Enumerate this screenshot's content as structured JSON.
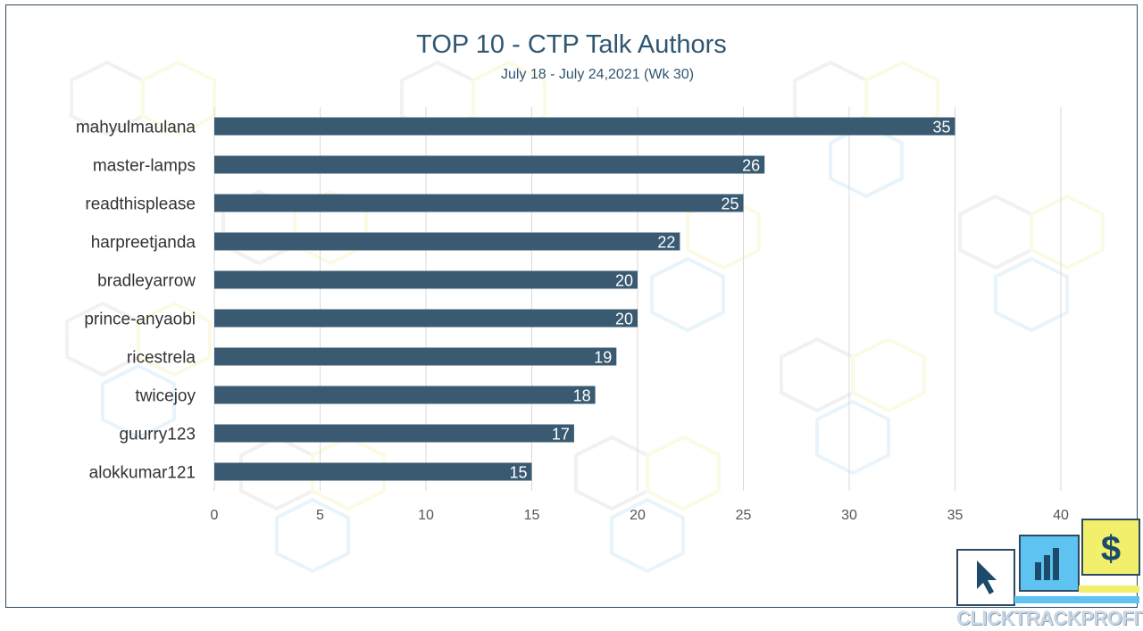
{
  "chart_data": {
    "type": "bar",
    "orientation": "horizontal",
    "title": "TOP 10 - CTP Talk Authors",
    "subtitle": "July 18 - July 24,2021 (Wk 30)",
    "categories": [
      "mahyulmaulana",
      "master-lamps",
      "readthisplease",
      "harpreetjanda",
      "bradleyarrow",
      "prince-anyaobi",
      "ricestrela",
      "twicejoy",
      "guurry123",
      "alokkumar121"
    ],
    "values": [
      35,
      26,
      25,
      22,
      20,
      20,
      19,
      18,
      17,
      15
    ],
    "xlim": [
      0,
      40
    ],
    "xticks": [
      "0",
      "5",
      "10",
      "15",
      "20",
      "25",
      "30",
      "35",
      "40"
    ],
    "grid": true,
    "data_labels": true,
    "colors": {
      "bar": "#3a5a72",
      "grid": "#d9d9d9",
      "axis_text": "#555555",
      "category_text": "#333333",
      "title": "#2f5672"
    }
  },
  "logo": {
    "text": "CLICKTRACKPROFIT"
  }
}
